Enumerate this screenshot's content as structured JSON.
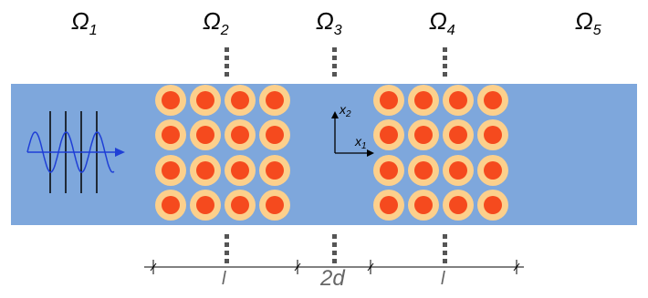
{
  "regions": [
    {
      "name": "Ω",
      "sub": "1"
    },
    {
      "name": "Ω",
      "sub": "2"
    },
    {
      "name": "Ω",
      "sub": "3"
    },
    {
      "name": "Ω",
      "sub": "4"
    },
    {
      "name": "Ω",
      "sub": "5"
    }
  ],
  "axes": {
    "x1": {
      "name": "x",
      "sub": "1"
    },
    "x2": {
      "name": "x",
      "sub": "2"
    }
  },
  "dimensions": {
    "left_length": "l",
    "gap": "2d",
    "right_length": "l"
  },
  "crystal": {
    "blocks": 2,
    "rows": 4,
    "columns_per_block": 4
  },
  "colors": {
    "waveguide": "#7ea7dc",
    "inclusion_outer": "#fcd08c",
    "inclusion_inner": "#f54a1e",
    "wave": "#1f3fd6"
  }
}
